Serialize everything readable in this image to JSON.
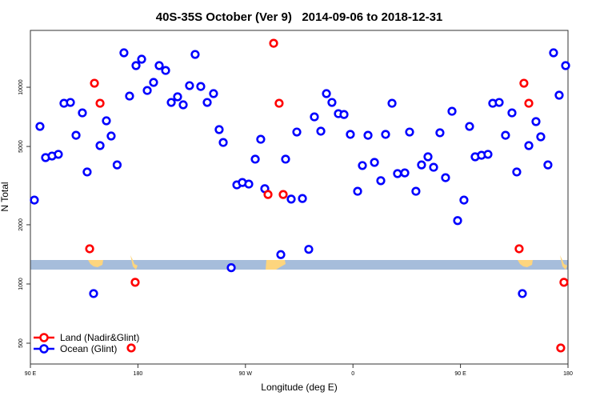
{
  "chart_data": {
    "type": "scatter",
    "title": "40S-35S October (Ver 9)   2014-09-06 to 2018-12-31",
    "xlabel": "Longitude (deg E)",
    "ylabel": "N Total",
    "xlim": [
      90,
      540
    ],
    "ylim": [
      392,
      19450
    ],
    "yscale": "log",
    "grid": false,
    "legend_position": "bottom-left",
    "x_ticks": [
      {
        "value": 90,
        "label": "90 E"
      },
      {
        "value": 180,
        "label": "180"
      },
      {
        "value": 270,
        "label": "90 W"
      },
      {
        "value": 360,
        "label": "0"
      },
      {
        "value": 450,
        "label": "90 E"
      },
      {
        "value": 540,
        "label": "180"
      }
    ],
    "y_ticks": [
      {
        "value": 500,
        "label": "500"
      },
      {
        "value": 1000,
        "label": "1000"
      },
      {
        "value": 2000,
        "label": "2000"
      },
      {
        "value": 5000,
        "label": "5000"
      },
      {
        "value": 10000,
        "label": "10000"
      }
    ],
    "series": [
      {
        "name": "Land (Nadir&Glint)",
        "color": "#ff0000",
        "x": [
          139.6,
          143.6,
          148.3,
          174.4,
          177.7,
          288.9,
          293.6,
          298.2,
          301.6,
          499.1,
          503.1,
          507.2,
          533.9,
          536.6
        ],
        "y": [
          1510,
          10480,
          8290,
          473,
          1020,
          2850,
          16730,
          8290,
          2850,
          1510,
          10480,
          8290,
          473,
          1020
        ]
      },
      {
        "name": "Ocean (Glint)",
        "color": "#0000ff",
        "x": [
          93.3,
          98.0,
          102.7,
          108.1,
          113.4,
          118.1,
          123.5,
          128.2,
          133.5,
          137.5,
          142.9,
          148.3,
          153.6,
          157.6,
          162.6,
          168.3,
          173.0,
          178.4,
          183.1,
          187.8,
          193.1,
          197.8,
          203.2,
          207.9,
          213.2,
          217.9,
          223.2,
          227.9,
          232.6,
          238.0,
          243.3,
          248.0,
          251.4,
          258.1,
          262.8,
          267.4,
          272.8,
          278.2,
          282.8,
          286.2,
          299.6,
          303.6,
          308.3,
          313.0,
          317.7,
          323.0,
          327.7,
          333.1,
          337.8,
          342.4,
          347.8,
          352.5,
          357.8,
          363.9,
          367.9,
          372.6,
          378.0,
          383.3,
          387.3,
          392.7,
          397.3,
          403.4,
          407.4,
          412.7,
          417.4,
          422.8,
          427.5,
          432.8,
          437.5,
          442.9,
          447.6,
          452.9,
          457.6,
          462.3,
          467.6,
          473.0,
          477.0,
          482.4,
          487.7,
          493.1,
          497.1,
          501.8,
          507.2,
          513.2,
          517.2,
          523.2,
          527.9,
          532.6,
          538.0
        ],
        "y": [
          2670,
          6320,
          4390,
          4470,
          4560,
          8290,
          8370,
          5700,
          7410,
          3710,
          894,
          5050,
          6750,
          5650,
          4030,
          14960,
          9020,
          12880,
          13880,
          9630,
          10580,
          12880,
          12170,
          8370,
          8940,
          8140,
          10190,
          14680,
          10090,
          8370,
          9280,
          6090,
          5240,
          1210,
          3190,
          3280,
          3220,
          4310,
          5440,
          3050,
          1410,
          4310,
          2700,
          5920,
          2720,
          1500,
          7070,
          5980,
          9280,
          8370,
          7340,
          7270,
          5760,
          2960,
          4000,
          5700,
          4150,
          3350,
          5760,
          8290,
          3640,
          3670,
          5920,
          2960,
          4030,
          4430,
          3920,
          5870,
          3470,
          7550,
          2100,
          2670,
          6320,
          4430,
          4510,
          4560,
          8290,
          8370,
          5700,
          7410,
          3710,
          894,
          5050,
          6690,
          5600,
          4030,
          14960,
          9110,
          12880
        ]
      }
    ]
  }
}
